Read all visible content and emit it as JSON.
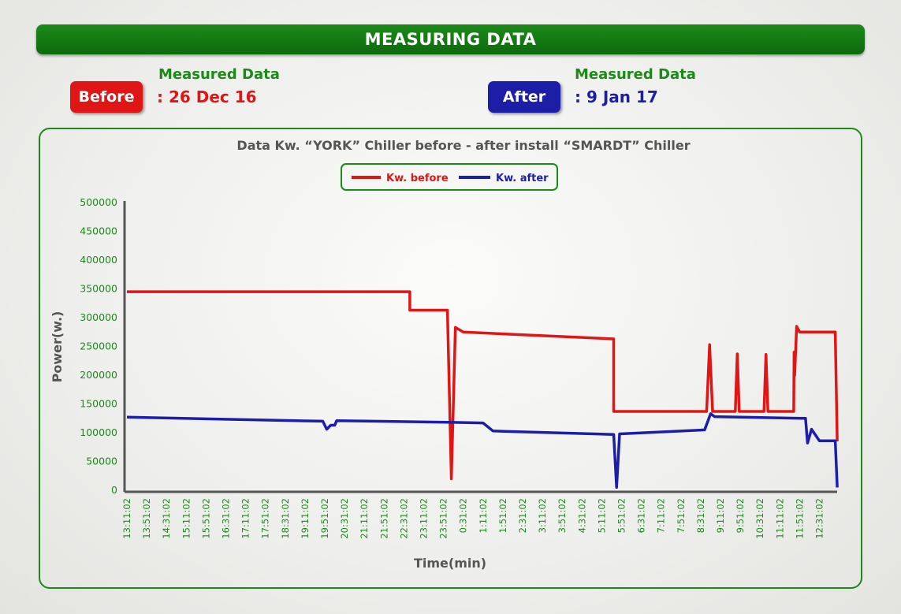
{
  "header": {
    "title": "MEASURING DATA"
  },
  "before": {
    "tag": "Before",
    "label": "Measured Data",
    "date": ":  26 Dec 16"
  },
  "after": {
    "tag": "After",
    "label": "Measured Data",
    "date": ":  9 Jan 17"
  },
  "colors": {
    "green": "#1b8a18",
    "before": "#e01515",
    "after": "#1c1ea8"
  },
  "chart_data": {
    "type": "line",
    "title": "Data Kw. “YORK” Chiller before - after install “SMARDT” Chiller",
    "xlabel": "Time(min)",
    "ylabel": "Power(w.)",
    "ylim": [
      0,
      500000
    ],
    "yticks": [
      0,
      50000,
      100000,
      150000,
      200000,
      250000,
      300000,
      350000,
      400000,
      450000,
      500000
    ],
    "x_categories": [
      "13:11:02",
      "13:51:02",
      "14:31:02",
      "15:11:02",
      "15:51:02",
      "16:31:02",
      "17:11:02",
      "17:51:02",
      "18:31:02",
      "19:11:02",
      "19:51:02",
      "20:31:02",
      "21:11:02",
      "21:51:02",
      "22:31:02",
      "23:11:02",
      "23:51:02",
      "0:31:02",
      "1:11:02",
      "1:51:02",
      "2:31:02",
      "3:11:02",
      "3:51:02",
      "4:31:02",
      "5:11:02",
      "5:51:02",
      "6:31:02",
      "7:11:02",
      "7:51:02",
      "8:31:02",
      "9:11:02",
      "9:51:02",
      "10:31:02",
      "11:11:02",
      "11:51:02",
      "12:31:02"
    ],
    "legend_position": "top-center",
    "series": [
      {
        "name": "Kw. before",
        "color": "#e01515",
        "points": [
          [
            0,
            345000
          ],
          [
            14.3,
            345000
          ],
          [
            14.3,
            313000
          ],
          [
            16.2,
            313000
          ],
          [
            16.4,
            20000
          ],
          [
            16.6,
            283000
          ],
          [
            17.0,
            275000
          ],
          [
            24.6,
            263000
          ],
          [
            24.6,
            137000
          ],
          [
            29.3,
            137000
          ],
          [
            29.45,
            253000
          ],
          [
            29.6,
            137000
          ],
          [
            30.75,
            137000
          ],
          [
            30.85,
            237000
          ],
          [
            30.95,
            137000
          ],
          [
            32.2,
            137000
          ],
          [
            32.3,
            236000
          ],
          [
            32.4,
            137000
          ],
          [
            33.7,
            137000
          ],
          [
            33.72,
            240000
          ],
          [
            33.75,
            200000
          ],
          [
            33.85,
            285000
          ],
          [
            34.0,
            275000
          ],
          [
            35.8,
            275000
          ],
          [
            35.9,
            85000
          ]
        ]
      },
      {
        "name": "Kw. after",
        "color": "#1c1ea8",
        "points": [
          [
            0,
            127000
          ],
          [
            9.9,
            120000
          ],
          [
            10.1,
            106000
          ],
          [
            10.3,
            113000
          ],
          [
            10.5,
            113000
          ],
          [
            10.6,
            121000
          ],
          [
            16.5,
            118000
          ],
          [
            18.0,
            117000
          ],
          [
            18.5,
            103000
          ],
          [
            24.6,
            97000
          ],
          [
            24.75,
            5000
          ],
          [
            24.9,
            98000
          ],
          [
            29.2,
            105000
          ],
          [
            29.5,
            133000
          ],
          [
            29.7,
            128000
          ],
          [
            34.3,
            125000
          ],
          [
            34.4,
            82000
          ],
          [
            34.6,
            106000
          ],
          [
            35.0,
            86000
          ],
          [
            35.8,
            86000
          ],
          [
            35.9,
            5000
          ]
        ]
      }
    ]
  }
}
